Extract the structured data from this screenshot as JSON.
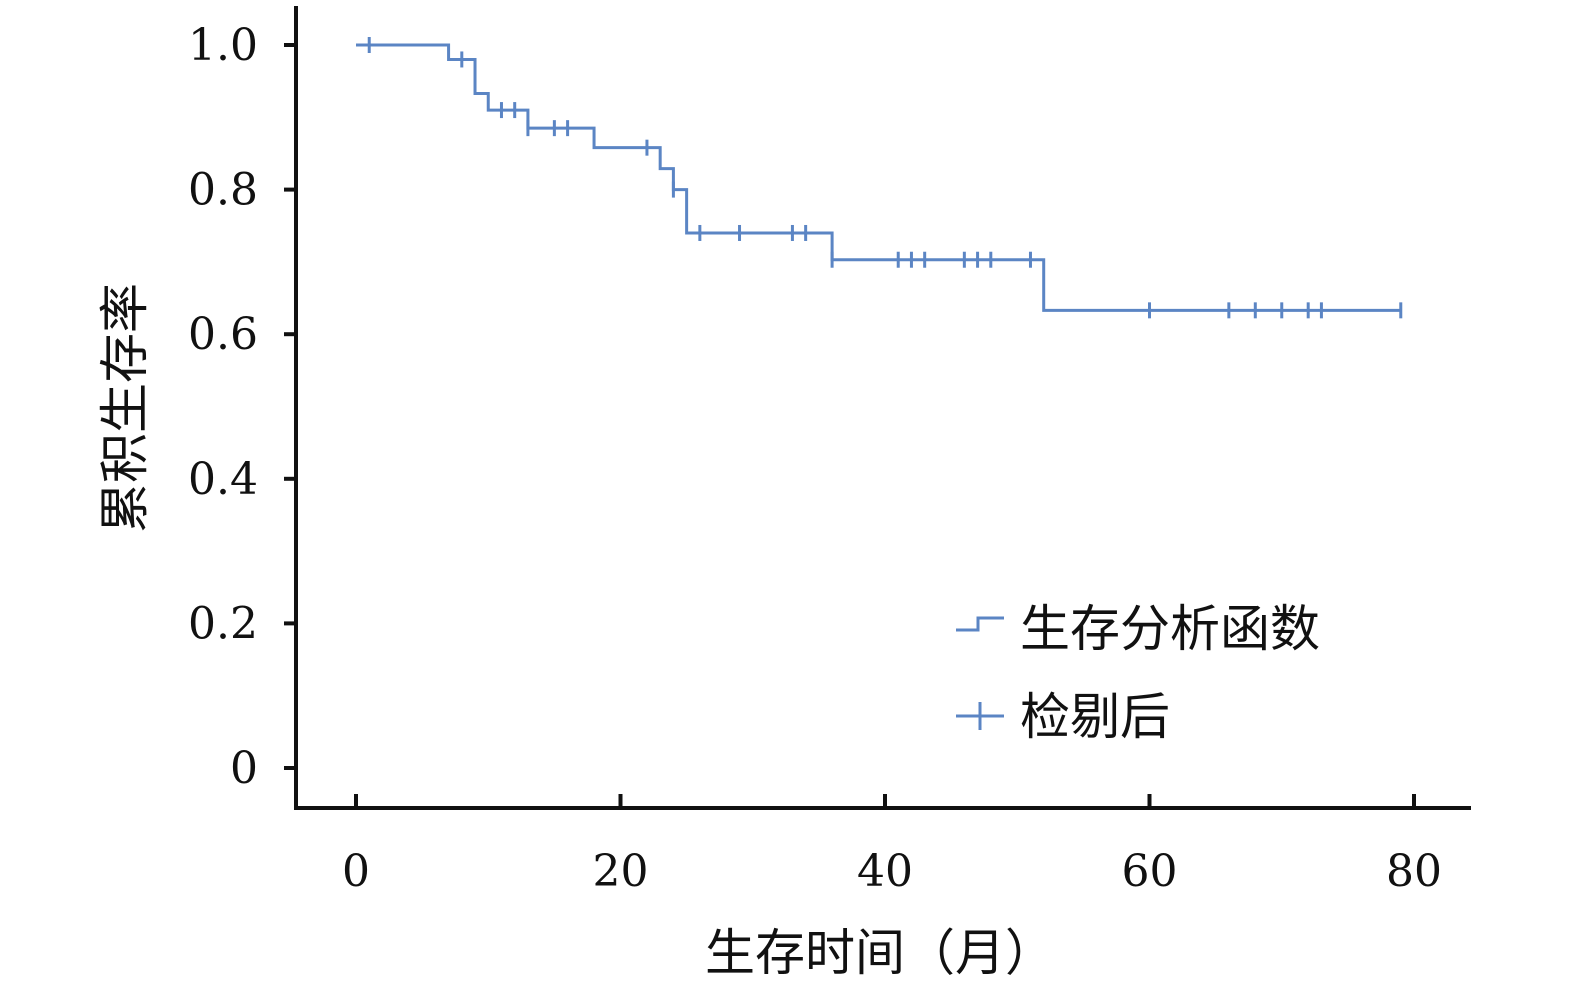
{
  "chart_data": {
    "type": "line",
    "subtype": "kaplan-meier",
    "title": "",
    "xlabel": "生存时间（月）",
    "ylabel": "累积生存率",
    "xlim": [
      0,
      80
    ],
    "ylim": [
      0,
      1.0
    ],
    "xticks": [
      0,
      20,
      40,
      60,
      80
    ],
    "xtick_labels": [
      "0",
      "20",
      "40",
      "60",
      "80"
    ],
    "yticks": [
      0,
      0.2,
      0.4,
      0.6,
      0.8,
      1.0
    ],
    "ytick_labels": [
      "0",
      "0.2",
      "0.4",
      "0.6",
      "0.8",
      "1.0"
    ],
    "grid": false,
    "legend_position": "bottom-right",
    "line_color": "#5b85c4",
    "series": [
      {
        "name": "生存分析函数",
        "step_points": [
          [
            0,
            1.0
          ],
          [
            7,
            0.98
          ],
          [
            9,
            0.933
          ],
          [
            10,
            0.91
          ],
          [
            13,
            0.885
          ],
          [
            18,
            0.858
          ],
          [
            23,
            0.829
          ],
          [
            24,
            0.8
          ],
          [
            25,
            0.74
          ],
          [
            36,
            0.703
          ],
          [
            52,
            0.633
          ],
          [
            79,
            0.633
          ]
        ]
      },
      {
        "name": "检剔后",
        "censored_x": [
          1,
          8,
          11,
          12,
          13,
          15,
          16,
          22,
          24,
          26,
          29,
          33,
          34,
          36,
          41,
          42,
          43,
          46,
          47,
          48,
          51,
          60,
          66,
          68,
          70,
          72,
          73,
          79
        ]
      }
    ]
  }
}
